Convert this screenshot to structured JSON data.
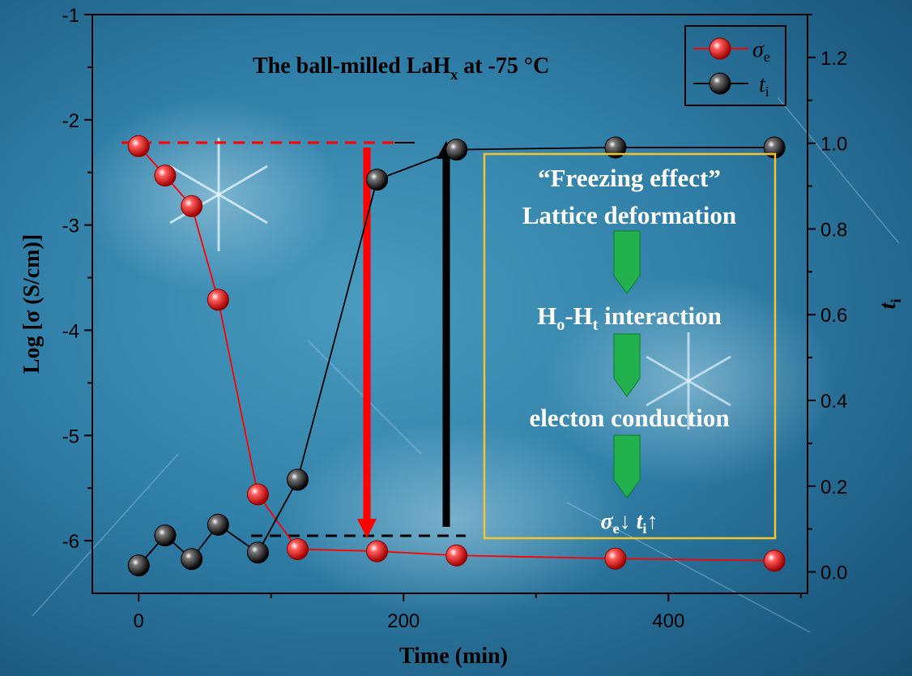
{
  "chart_data": {
    "type": "line",
    "title": "The ball-milled LaH",
    "title_sub": "x",
    "title_suffix": " at -75 °C",
    "xlabel": "Time (min)",
    "ylabel": "Log [σ (S/cm)]",
    "y2label": "t",
    "y2label_sub": "i",
    "xlim": [
      -35,
      505
    ],
    "ylim": [
      -6.5,
      -1.0
    ],
    "y2lim": [
      -0.05,
      1.3
    ],
    "x_ticks": [
      0,
      200,
      400
    ],
    "x_minor_ticks": [
      100,
      300,
      500
    ],
    "y_ticks": [
      -1,
      -2,
      -3,
      -4,
      -5,
      -6
    ],
    "y2_ticks": [
      1.2,
      1.0,
      0.8,
      0.6,
      0.4,
      0.2,
      0.0
    ],
    "y2_tick_labels": [
      "1.2",
      "1.0",
      "0.8",
      "0.6",
      "0.4",
      "0.2",
      "0.0"
    ],
    "grid": false,
    "legend_position": "top-right",
    "series": [
      {
        "name": "σ",
        "name_sub": "e",
        "axis": "left",
        "color": "#ff0000",
        "x": [
          0,
          20,
          40,
          60,
          90,
          120,
          180,
          240,
          360,
          480
        ],
        "y": [
          -2.25,
          -2.53,
          -2.82,
          -3.71,
          -5.56,
          -6.08,
          -6.1,
          -6.14,
          -6.17,
          -6.19
        ]
      },
      {
        "name": "t",
        "name_sub": "i",
        "axis": "right",
        "color": "#000000",
        "x": [
          0,
          20,
          40,
          60,
          90,
          120,
          180,
          240,
          360,
          480
        ],
        "y": [
          0.015,
          0.085,
          0.03,
          0.11,
          0.045,
          0.215,
          0.915,
          0.985,
          0.99,
          0.99
        ]
      }
    ],
    "annotations": {
      "box_lines": [
        "“Freezing effect”",
        "Lattice deformation",
        "interaction",
        "electon conduction"
      ],
      "box_line3_prefix": "H",
      "box_line3_sub1": "o",
      "box_line3_mid": "-H",
      "box_line3_sub2": "t",
      "box_bottom": {
        "s1": "σ",
        "s1_sub": "e",
        "arrow1": "↓",
        "s2": "t",
        "s2_sub": "i",
        "arrow2": "↑"
      },
      "box_border_color": "#f2c430",
      "chevron_color": "#22b14c"
    }
  }
}
